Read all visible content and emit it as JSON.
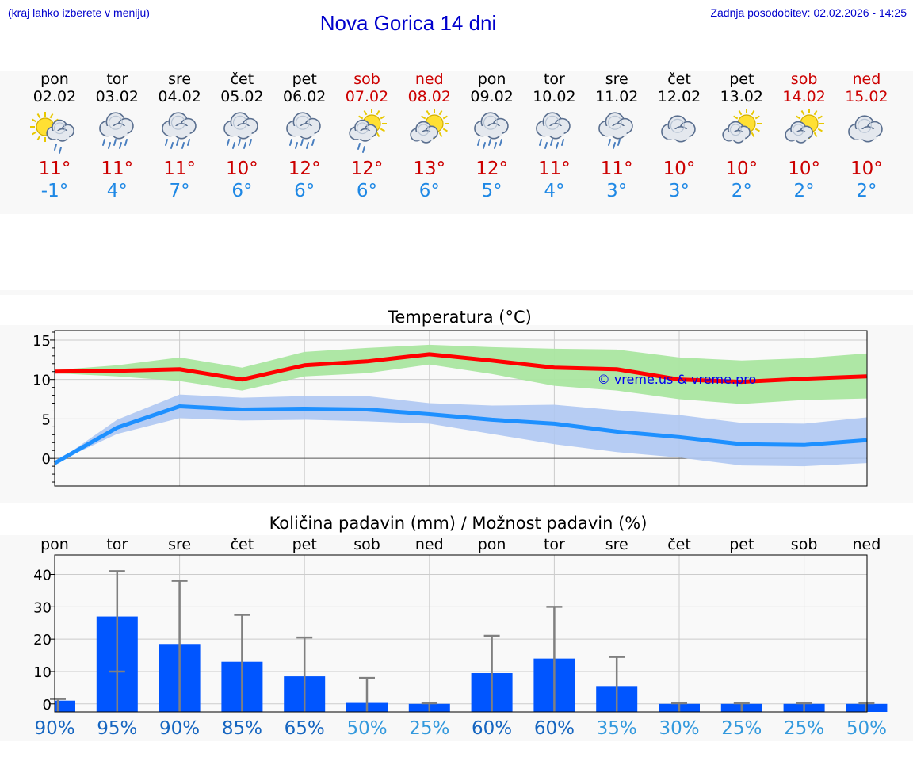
{
  "header": {
    "menu_hint": "(kraj lahko izberete v meniju)",
    "title": "Nova Gorica 14 dni",
    "updated": "Zadnja posodobitev: 02.02.2026 - 14:25"
  },
  "days": [
    {
      "name": "pon",
      "date": "02.02",
      "weekend": false,
      "icon": "sun-cloud-rain-icon",
      "tmax": "11°",
      "tmin": "-1°"
    },
    {
      "name": "tor",
      "date": "03.02",
      "weekend": false,
      "icon": "cloud-heavy-rain-icon",
      "tmax": "11°",
      "tmin": "4°"
    },
    {
      "name": "sre",
      "date": "04.02",
      "weekend": false,
      "icon": "cloud-heavy-rain-icon",
      "tmax": "11°",
      "tmin": "7°"
    },
    {
      "name": "čet",
      "date": "05.02",
      "weekend": false,
      "icon": "cloud-heavy-rain-icon",
      "tmax": "10°",
      "tmin": "6°"
    },
    {
      "name": "pet",
      "date": "06.02",
      "weekend": false,
      "icon": "cloud-heavy-rain-icon",
      "tmax": "12°",
      "tmin": "6°"
    },
    {
      "name": "sob",
      "date": "07.02",
      "weekend": true,
      "icon": "sun-cloud-light-rain-icon",
      "tmax": "12°",
      "tmin": "6°"
    },
    {
      "name": "ned",
      "date": "08.02",
      "weekend": true,
      "icon": "sun-cloud-icon",
      "tmax": "13°",
      "tmin": "6°"
    },
    {
      "name": "pon",
      "date": "09.02",
      "weekend": false,
      "icon": "cloud-heavy-rain-icon",
      "tmax": "12°",
      "tmin": "5°"
    },
    {
      "name": "tor",
      "date": "10.02",
      "weekend": false,
      "icon": "cloud-heavy-rain-icon",
      "tmax": "11°",
      "tmin": "4°"
    },
    {
      "name": "sre",
      "date": "11.02",
      "weekend": false,
      "icon": "cloud-rain-icon",
      "tmax": "11°",
      "tmin": "3°"
    },
    {
      "name": "čet",
      "date": "12.02",
      "weekend": false,
      "icon": "cloud-icon",
      "tmax": "10°",
      "tmin": "3°"
    },
    {
      "name": "pet",
      "date": "13.02",
      "weekend": false,
      "icon": "sun-cloud-icon",
      "tmax": "10°",
      "tmin": "2°"
    },
    {
      "name": "sob",
      "date": "14.02",
      "weekend": true,
      "icon": "sun-cloud-icon",
      "tmax": "10°",
      "tmin": "2°"
    },
    {
      "name": "ned",
      "date": "15.02",
      "weekend": true,
      "icon": "cloud-icon",
      "tmax": "10°",
      "tmin": "2°"
    }
  ],
  "colors": {
    "max_line": "#ff0000",
    "max_band": "#aae6a0",
    "min_line": "#1e90ff",
    "min_band": "#aec6f2",
    "bar": "#0055ff",
    "whisker": "#808080",
    "prob_high": "#1565c0",
    "prob_low": "#3399dd"
  },
  "chart_data": [
    {
      "type": "line",
      "title": "Temperatura (°C)",
      "watermark": "© vreme.us & vreme.pro",
      "x": [
        0,
        1,
        2,
        3,
        4,
        5,
        6,
        7,
        8,
        9,
        10,
        11,
        12,
        13
      ],
      "ylim": [
        -3.5,
        16.2
      ],
      "yticks": [
        0,
        5,
        10,
        15
      ],
      "series": [
        {
          "name": "max",
          "values": [
            11.0,
            11.1,
            11.3,
            10.0,
            11.8,
            12.3,
            13.2,
            12.4,
            11.5,
            11.3,
            10.0,
            9.7,
            10.1,
            10.4
          ],
          "band_low": [
            10.8,
            10.4,
            9.8,
            8.6,
            10.4,
            10.8,
            11.9,
            10.7,
            9.2,
            8.6,
            7.5,
            6.9,
            7.4,
            7.6
          ],
          "band_high": [
            11.2,
            11.8,
            12.8,
            11.5,
            13.5,
            14.0,
            14.4,
            14.1,
            13.9,
            13.8,
            12.8,
            12.4,
            12.7,
            13.3
          ]
        },
        {
          "name": "min",
          "values": [
            -0.6,
            3.9,
            6.6,
            6.2,
            6.3,
            6.2,
            5.6,
            4.9,
            4.4,
            3.4,
            2.7,
            1.8,
            1.7,
            2.3
          ],
          "band_low": [
            -0.6,
            3.1,
            5.1,
            4.8,
            4.9,
            4.7,
            4.4,
            3.1,
            1.8,
            0.8,
            0.1,
            -0.9,
            -1.0,
            -0.6
          ],
          "band_high": [
            -0.6,
            4.9,
            8.1,
            7.7,
            7.9,
            7.9,
            7.0,
            6.7,
            6.8,
            6.1,
            5.5,
            4.5,
            4.4,
            5.2
          ]
        }
      ]
    },
    {
      "type": "bar",
      "title": "Količina padavin (mm) / Možnost padavin (%)",
      "categories": [
        "pon",
        "tor",
        "sre",
        "čet",
        "pet",
        "sob",
        "ned",
        "pon",
        "tor",
        "sre",
        "čet",
        "pet",
        "sob",
        "ned"
      ],
      "values": [
        1.0,
        27.0,
        18.5,
        13.0,
        8.5,
        0.3,
        0.0,
        9.5,
        14.0,
        5.5,
        0.0,
        0.0,
        0.0,
        0.0
      ],
      "err_low": [
        1.0,
        10.0,
        0.0,
        0.0,
        0.0,
        0.0,
        0.0,
        0.0,
        0.0,
        0.0,
        0.0,
        0.0,
        0.0,
        0.0
      ],
      "err_high": [
        1.5,
        41.0,
        38.0,
        27.5,
        20.5,
        8.0,
        0.2,
        21.0,
        30.0,
        14.5,
        0.2,
        0.2,
        0.2,
        0.2
      ],
      "probability": [
        "90%",
        "95%",
        "90%",
        "85%",
        "65%",
        "50%",
        "25%",
        "60%",
        "60%",
        "35%",
        "30%",
        "25%",
        "25%",
        "50%"
      ],
      "prob_value": [
        90,
        95,
        90,
        85,
        65,
        50,
        25,
        60,
        60,
        35,
        30,
        25,
        25,
        50
      ],
      "yticks": [
        0,
        10,
        20,
        30,
        40
      ],
      "ylim": [
        -2.5,
        46
      ]
    }
  ]
}
